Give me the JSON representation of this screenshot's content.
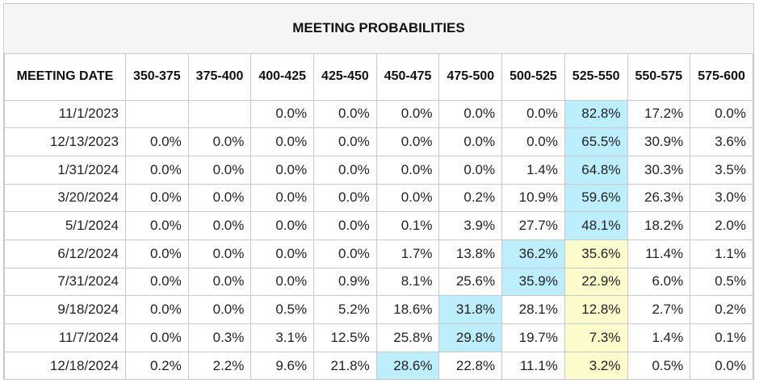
{
  "title": "MEETING PROBABILITIES",
  "headers": [
    "MEETING DATE",
    "350-375",
    "375-400",
    "400-425",
    "425-450",
    "450-475",
    "475-500",
    "500-525",
    "525-550",
    "550-575",
    "575-600"
  ],
  "colors": {
    "highlight_blue": "#bdeefc",
    "highlight_yellow": "#fcfbcb",
    "border": "#c8c8c8"
  },
  "rows": [
    {
      "date": "11/1/2023",
      "values": [
        "",
        "",
        "0.0%",
        "0.0%",
        "0.0%",
        "0.0%",
        "0.0%",
        "82.8%",
        "17.2%",
        "0.0%"
      ],
      "blue": 7,
      "yellow": -1
    },
    {
      "date": "12/13/2023",
      "values": [
        "0.0%",
        "0.0%",
        "0.0%",
        "0.0%",
        "0.0%",
        "0.0%",
        "0.0%",
        "65.5%",
        "30.9%",
        "3.6%"
      ],
      "blue": 7,
      "yellow": -1
    },
    {
      "date": "1/31/2024",
      "values": [
        "0.0%",
        "0.0%",
        "0.0%",
        "0.0%",
        "0.0%",
        "0.0%",
        "1.4%",
        "64.8%",
        "30.3%",
        "3.5%"
      ],
      "blue": 7,
      "yellow": -1
    },
    {
      "date": "3/20/2024",
      "values": [
        "0.0%",
        "0.0%",
        "0.0%",
        "0.0%",
        "0.0%",
        "0.2%",
        "10.9%",
        "59.6%",
        "26.3%",
        "3.0%"
      ],
      "blue": 7,
      "yellow": -1
    },
    {
      "date": "5/1/2024",
      "values": [
        "0.0%",
        "0.0%",
        "0.0%",
        "0.0%",
        "0.1%",
        "3.9%",
        "27.7%",
        "48.1%",
        "18.2%",
        "2.0%"
      ],
      "blue": 7,
      "yellow": -1
    },
    {
      "date": "6/12/2024",
      "values": [
        "0.0%",
        "0.0%",
        "0.0%",
        "0.0%",
        "1.7%",
        "13.8%",
        "36.2%",
        "35.6%",
        "11.4%",
        "1.1%"
      ],
      "blue": 6,
      "yellow": 7
    },
    {
      "date": "7/31/2024",
      "values": [
        "0.0%",
        "0.0%",
        "0.0%",
        "0.9%",
        "8.1%",
        "25.6%",
        "35.9%",
        "22.9%",
        "6.0%",
        "0.5%"
      ],
      "blue": 6,
      "yellow": 7
    },
    {
      "date": "9/18/2024",
      "values": [
        "0.0%",
        "0.0%",
        "0.5%",
        "5.2%",
        "18.6%",
        "31.8%",
        "28.1%",
        "12.8%",
        "2.7%",
        "0.2%"
      ],
      "blue": 5,
      "yellow": 7
    },
    {
      "date": "11/7/2024",
      "values": [
        "0.0%",
        "0.3%",
        "3.1%",
        "12.5%",
        "25.8%",
        "29.8%",
        "19.7%",
        "7.3%",
        "1.4%",
        "0.1%"
      ],
      "blue": 5,
      "yellow": 7
    },
    {
      "date": "12/18/2024",
      "values": [
        "0.2%",
        "2.2%",
        "9.6%",
        "21.8%",
        "28.6%",
        "22.8%",
        "11.1%",
        "3.2%",
        "0.5%",
        "0.0%"
      ],
      "blue": 4,
      "yellow": 7
    }
  ]
}
